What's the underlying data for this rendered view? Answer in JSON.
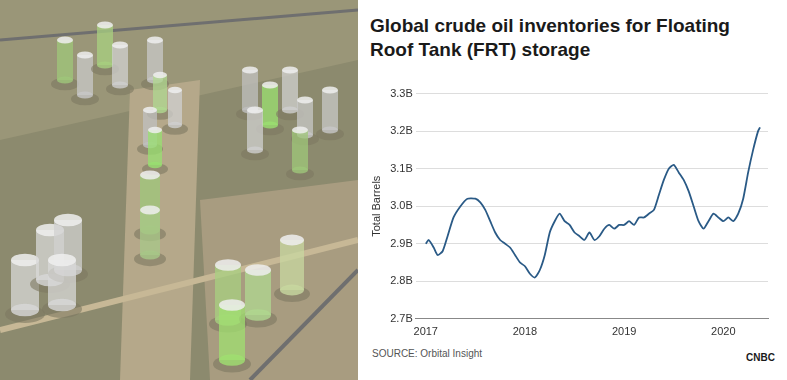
{
  "chart_data": {
    "type": "line",
    "title": "Global crude oil inventories for Floating Roof Tank (FRT) storage",
    "y_label": "Total Barrels",
    "source": "SOURCE: Orbital Insight",
    "logo": "CNBC",
    "color": "#2a5a86",
    "grid": true,
    "x": [
      2017.0,
      2017.03,
      2017.08,
      2017.12,
      2017.17,
      2017.22,
      2017.28,
      2017.35,
      2017.42,
      2017.5,
      2017.55,
      2017.6,
      2017.65,
      2017.7,
      2017.75,
      2017.8,
      2017.85,
      2017.9,
      2017.95,
      2018.0,
      2018.05,
      2018.1,
      2018.15,
      2018.2,
      2018.25,
      2018.3,
      2018.35,
      2018.4,
      2018.45,
      2018.5,
      2018.55,
      2018.6,
      2018.65,
      2018.7,
      2018.75,
      2018.8,
      2018.85,
      2018.9,
      2018.95,
      2019.0,
      2019.05,
      2019.1,
      2019.15,
      2019.2,
      2019.25,
      2019.3,
      2019.35,
      2019.4,
      2019.45,
      2019.5,
      2019.55,
      2019.6,
      2019.65,
      2019.7,
      2019.75,
      2019.8,
      2019.85,
      2019.9,
      2019.95,
      2020.0,
      2020.05,
      2020.1,
      2020.15,
      2020.2,
      2020.25,
      2020.3,
      2020.35,
      2020.37
    ],
    "values": [
      2.9,
      2.91,
      2.89,
      2.87,
      2.88,
      2.92,
      2.97,
      3.0,
      3.02,
      3.02,
      3.01,
      2.99,
      2.96,
      2.93,
      2.91,
      2.9,
      2.89,
      2.87,
      2.85,
      2.84,
      2.82,
      2.81,
      2.83,
      2.87,
      2.93,
      2.96,
      2.98,
      2.96,
      2.95,
      2.93,
      2.92,
      2.91,
      2.93,
      2.91,
      2.92,
      2.94,
      2.95,
      2.94,
      2.95,
      2.95,
      2.96,
      2.95,
      2.97,
      2.97,
      2.98,
      2.99,
      3.03,
      3.07,
      3.1,
      3.11,
      3.09,
      3.07,
      3.04,
      3.0,
      2.96,
      2.94,
      2.96,
      2.98,
      2.97,
      2.96,
      2.97,
      2.96,
      2.98,
      3.02,
      3.09,
      3.15,
      3.2,
      3.21
    ],
    "xlim": [
      2016.9,
      2020.45
    ],
    "xticks": [
      2017,
      2018,
      2019,
      2020
    ],
    "ylim": [
      2.7,
      3.3
    ],
    "yticks": [
      {
        "value": 2.7,
        "label": "2.7B"
      },
      {
        "value": 2.8,
        "label": "2.8B"
      },
      {
        "value": 2.9,
        "label": "2.9B"
      },
      {
        "value": 3.0,
        "label": "3.0B"
      },
      {
        "value": 3.1,
        "label": "3.1B"
      },
      {
        "value": 3.2,
        "label": "3.2B"
      },
      {
        "value": 3.3,
        "label": "3.3B"
      }
    ]
  }
}
